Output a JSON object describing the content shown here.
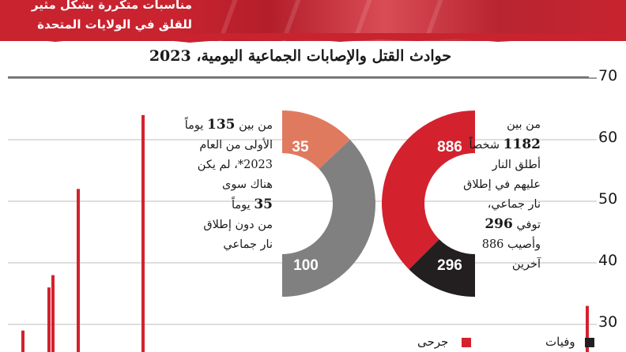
{
  "banner": {
    "line1": "مناسبات متكررة بشكل مثير",
    "line2": "للقلق في الولايات المتحدة"
  },
  "colors": {
    "red": "#d3222e",
    "salmon": "#e07a5f",
    "gray": "#808080",
    "black": "#231f20",
    "banner": "#c8232f"
  },
  "chart_data": [
    {
      "type": "bar",
      "title": "حوادث القتل والإصابات الجماعية اليومية، 2023",
      "ylim": [
        25,
        70
      ],
      "yticks": [
        30,
        40,
        50,
        60,
        70
      ],
      "series": [
        {
          "values": [
            29,
            36,
            38,
            52,
            64,
            33
          ]
        }
      ],
      "grid": true,
      "gridlines": "horizontal"
    },
    {
      "type": "pie",
      "shape": "half-donut",
      "slices": [
        {
          "label": "35",
          "value": 35,
          "color": "#e07a5f"
        },
        {
          "label": "100",
          "value": 100,
          "color": "#808080"
        }
      ]
    },
    {
      "type": "pie",
      "shape": "half-donut",
      "slices": [
        {
          "label": "886",
          "value": 886,
          "color": "#d3222e"
        },
        {
          "label": "296",
          "value": 296,
          "color": "#231f20"
        }
      ]
    }
  ],
  "yticks_text": [
    "70",
    "60",
    "50",
    "40",
    "30"
  ],
  "annotation_days": {
    "l1_pre": "من بين ",
    "l1_num": "135",
    "l1_post": " يوماً",
    "l2": "الأولى من العام",
    "l3": "2023*، لم يكن",
    "l4": "هناك سوى",
    "l5_num": "35",
    "l5_post": " يوماً",
    "l6": "من دون إطلاق",
    "l7": "نار جماعي"
  },
  "annotation_people": {
    "l1": "من بين",
    "l2_num": "1182",
    "l2_post": " شخصاً",
    "l3": "أطلق النار",
    "l4": "عليهم في إطلاق",
    "l5": "نار جماعي،",
    "l6_pre": "توفي ",
    "l6_num": "296",
    "l7": "وأصيب 886",
    "l8": "آخرين"
  },
  "legend": {
    "injured": "جرحى",
    "deaths": "وفيات"
  }
}
